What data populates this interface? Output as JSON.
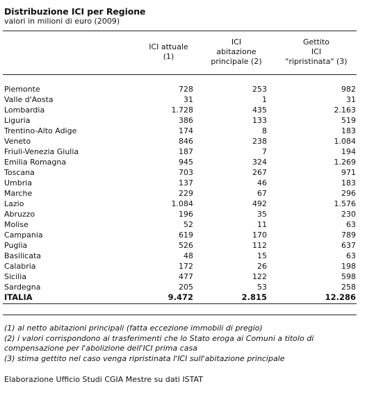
{
  "title": "Distribuzione ICI per Regione",
  "subtitle": "valori in milioni di euro (2009)",
  "columns": {
    "c1": "ICI attuale\n(1)",
    "c2": "ICI\nabitazione\nprincipale (2)",
    "c3": "Gettito\nICI\n\"ripristinata\" (3)"
  },
  "rows": [
    {
      "region": "Piemonte",
      "ici_attuale": "728",
      "ici_abitazione": "253",
      "gettito": "982"
    },
    {
      "region": "Valle d'Aosta",
      "ici_attuale": "31",
      "ici_abitazione": "1",
      "gettito": "31"
    },
    {
      "region": "Lombardia",
      "ici_attuale": "1.728",
      "ici_abitazione": "435",
      "gettito": "2.163"
    },
    {
      "region": "Liguria",
      "ici_attuale": "386",
      "ici_abitazione": "133",
      "gettito": "519"
    },
    {
      "region": "Trentino-Alto Adige",
      "ici_attuale": "174",
      "ici_abitazione": "8",
      "gettito": "183"
    },
    {
      "region": "Veneto",
      "ici_attuale": "846",
      "ici_abitazione": "238",
      "gettito": "1.084"
    },
    {
      "region": "Friuli-Venezia Giulia",
      "ici_attuale": "187",
      "ici_abitazione": "7",
      "gettito": "194"
    },
    {
      "region": "Emilia Romagna",
      "ici_attuale": "945",
      "ici_abitazione": "324",
      "gettito": "1.269"
    },
    {
      "region": "Toscana",
      "ici_attuale": "703",
      "ici_abitazione": "267",
      "gettito": "971"
    },
    {
      "region": "Umbria",
      "ici_attuale": "137",
      "ici_abitazione": "46",
      "gettito": "183"
    },
    {
      "region": "Marche",
      "ici_attuale": "229",
      "ici_abitazione": "67",
      "gettito": "296"
    },
    {
      "region": "Lazio",
      "ici_attuale": "1.084",
      "ici_abitazione": "492",
      "gettito": "1.576"
    },
    {
      "region": "Abruzzo",
      "ici_attuale": "196",
      "ici_abitazione": "35",
      "gettito": "230"
    },
    {
      "region": "Molise",
      "ici_attuale": "52",
      "ici_abitazione": "11",
      "gettito": "63"
    },
    {
      "region": "Campania",
      "ici_attuale": "619",
      "ici_abitazione": "170",
      "gettito": "789"
    },
    {
      "region": "Puglia",
      "ici_attuale": "526",
      "ici_abitazione": "112",
      "gettito": "637"
    },
    {
      "region": "Basilicata",
      "ici_attuale": "48",
      "ici_abitazione": "15",
      "gettito": "63"
    },
    {
      "region": "Calabria",
      "ici_attuale": "172",
      "ici_abitazione": "26",
      "gettito": "198"
    },
    {
      "region": "Sicilia",
      "ici_attuale": "477",
      "ici_abitazione": "122",
      "gettito": "598"
    },
    {
      "region": "Sardegna",
      "ici_attuale": "205",
      "ici_abitazione": "53",
      "gettito": "258"
    }
  ],
  "total": {
    "region": "ITALIA",
    "ici_attuale": "9.472",
    "ici_abitazione": "2.815",
    "gettito": "12.286"
  },
  "notes": [
    "(1) al netto abitazioni principali (fatta eccezione immobili di pregio)",
    "(2) i valori corrispondono ai trasferimenti che lo Stato eroga ai Comuni a titolo di compensazione  per l'abolizione dell'ICI prima casa",
    "(3) stima gettito nel caso venga ripristinata l'ICI sull'abitazione principale"
  ],
  "source": "Elaborazione Ufficio Studi CGIA Mestre su dati ISTAT"
}
